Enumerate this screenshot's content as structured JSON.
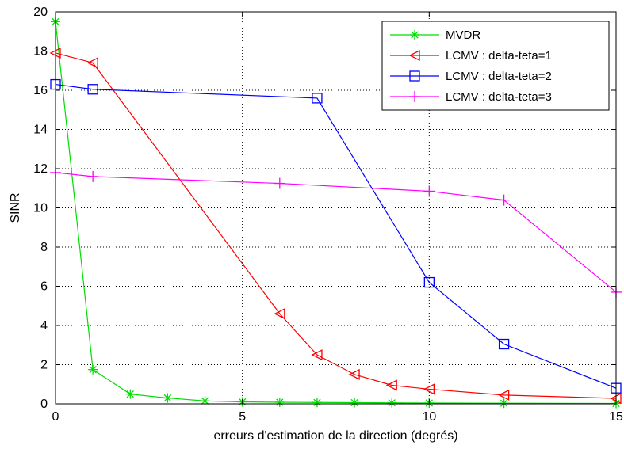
{
  "chart_data": {
    "type": "line",
    "title": "",
    "xlabel": "erreurs d'estimation de la direction (degrés)",
    "ylabel": "SINR",
    "xlim": [
      0,
      15
    ],
    "ylim": [
      0,
      20
    ],
    "xticks": [
      0,
      5,
      10,
      15
    ],
    "yticks": [
      0,
      2,
      4,
      6,
      8,
      10,
      12,
      14,
      16,
      18,
      20
    ],
    "grid": true,
    "legend_position": "top-right",
    "series": [
      {
        "name": "MVDR",
        "color": "#00dd00",
        "marker": "asterisk",
        "x": [
          0,
          1,
          2,
          3,
          4,
          5,
          6,
          7,
          8,
          9,
          10,
          12,
          15
        ],
        "y": [
          19.5,
          1.75,
          0.5,
          0.3,
          0.15,
          0.1,
          0.08,
          0.07,
          0.06,
          0.05,
          0.04,
          0.03,
          0.02
        ]
      },
      {
        "name": "LCMV : delta-teta=1",
        "color": "#ff0000",
        "marker": "triangle-left",
        "x": [
          0,
          1,
          6,
          7,
          8,
          9,
          10,
          12,
          15
        ],
        "y": [
          17.9,
          17.4,
          4.6,
          2.5,
          1.5,
          0.95,
          0.75,
          0.45,
          0.28
        ]
      },
      {
        "name": "LCMV : delta-teta=2",
        "color": "#0000ff",
        "marker": "square",
        "x": [
          0,
          1,
          7,
          10,
          12,
          15
        ],
        "y": [
          16.3,
          16.05,
          15.6,
          6.2,
          3.05,
          0.8
        ]
      },
      {
        "name": "LCMV : delta-teta=3",
        "color": "#ff00ff",
        "marker": "plus",
        "x": [
          0,
          1,
          6,
          10,
          12,
          15
        ],
        "y": [
          11.8,
          11.6,
          11.25,
          10.85,
          10.4,
          5.7
        ]
      }
    ]
  }
}
